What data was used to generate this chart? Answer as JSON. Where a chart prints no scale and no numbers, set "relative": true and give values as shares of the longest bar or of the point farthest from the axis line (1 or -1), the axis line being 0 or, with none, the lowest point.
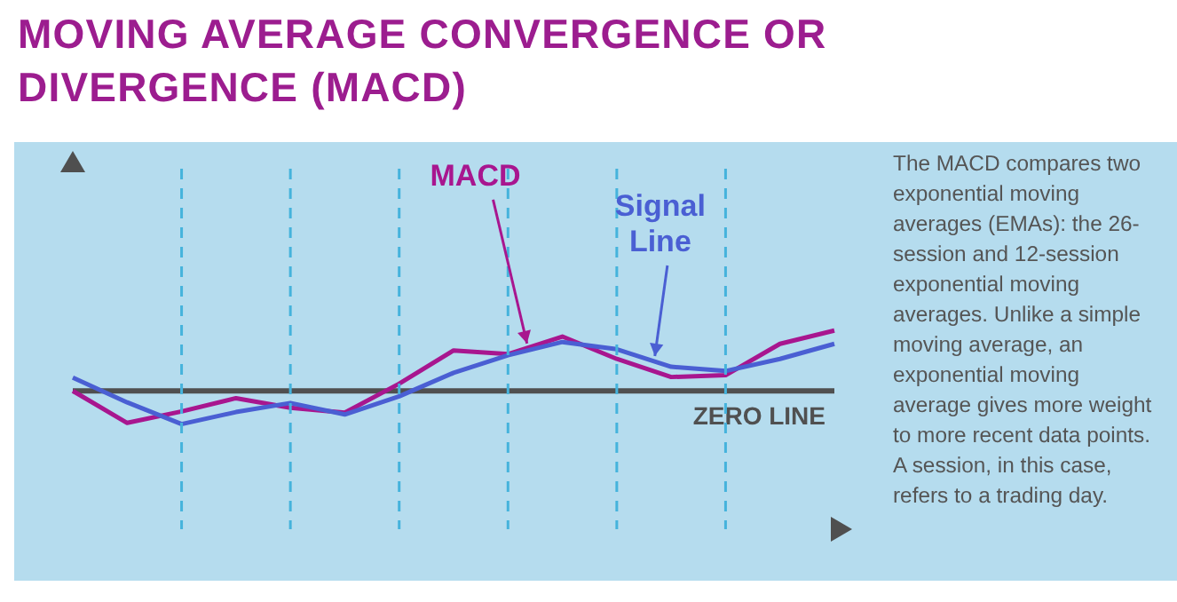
{
  "chart_data": {
    "type": "line",
    "title": "MOVING AVERAGE CONVERGENCE OR DIVERGENCE (MACD)",
    "relative": true,
    "categories": [
      null,
      null,
      null,
      null,
      null,
      null,
      null,
      null,
      null,
      null,
      null,
      null,
      null,
      null,
      null
    ],
    "series": [
      {
        "name": "MACD",
        "color": "#a8168f",
        "values": [
          0,
          -0.53,
          -0.34,
          -0.12,
          -0.28,
          -0.36,
          0.12,
          0.67,
          0.61,
          0.9,
          0.53,
          0.23,
          0.26,
          0.78,
          1
        ]
      },
      {
        "name": "Signal Line",
        "color": "#4a5fd3",
        "values": [
          0.22,
          -0.19,
          -0.55,
          -0.35,
          -0.2,
          -0.39,
          -0.09,
          0.3,
          0.59,
          0.81,
          0.69,
          0.4,
          0.33,
          0.53,
          0.78
        ]
      }
    ],
    "ref_lines": [
      {
        "axis": "y",
        "value": 0,
        "label": "ZERO LINE",
        "color": "#505050"
      }
    ],
    "annotations": [
      "The MACD compares two exponential moving averages (EMAs): the 26-session and 12-session exponential moving averages. Unlike a simple moving average, an exponential moving average gives more weight to more recent data points. A session, in this case, refers to a trading day."
    ],
    "grid": "x",
    "legend": false,
    "marker": "none",
    "line_style": "solid"
  }
}
